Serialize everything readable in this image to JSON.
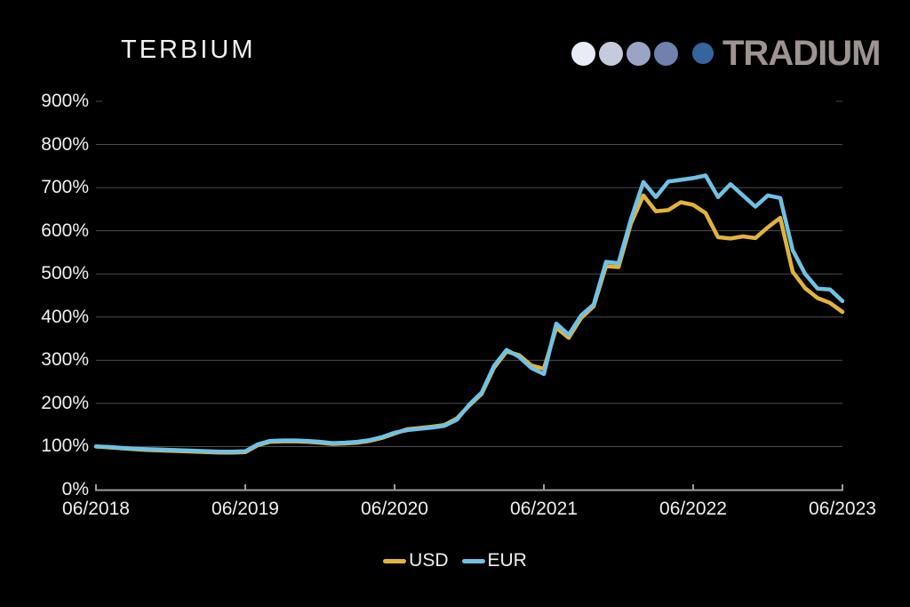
{
  "page": {
    "title": "TERBIUM",
    "brand": {
      "name": "TRADIUM",
      "dot_colors": [
        "#e9ecf4",
        "#c6cadd",
        "#9aa5c6",
        "#6e82ad",
        "#36649d"
      ],
      "text_color": "#9d9492"
    }
  },
  "colors": {
    "background": "#000000",
    "gridline": "#4d4d4d",
    "axis": "#9e9e9e",
    "label_text": "#f0f0f0",
    "usd_line": "#e2b33c",
    "eur_line": "#6fc1e5"
  },
  "chart_data": {
    "type": "line",
    "title": "TERBIUM",
    "xlabel": "",
    "ylabel": "",
    "grid": true,
    "legend_position": "bottom",
    "ylim": [
      0,
      900
    ],
    "gridline_top_value": 800,
    "y_ticks": [
      {
        "value": 0,
        "label": "0%"
      },
      {
        "value": 100,
        "label": "100%"
      },
      {
        "value": 200,
        "label": "200%"
      },
      {
        "value": 300,
        "label": "300%"
      },
      {
        "value": 400,
        "label": "400%"
      },
      {
        "value": 500,
        "label": "500%"
      },
      {
        "value": 600,
        "label": "600%"
      },
      {
        "value": 700,
        "label": "700%"
      },
      {
        "value": 800,
        "label": "800%"
      },
      {
        "value": 900,
        "label": "900%"
      }
    ],
    "x_ticks": [
      {
        "month_index": 0,
        "label": "06/2018"
      },
      {
        "month_index": 12,
        "label": "06/2019"
      },
      {
        "month_index": 24,
        "label": "06/2020"
      },
      {
        "month_index": 36,
        "label": "06/2021"
      },
      {
        "month_index": 48,
        "label": "06/2022"
      },
      {
        "month_index": 60,
        "label": "06/2023"
      }
    ],
    "x_range": {
      "start": "06/2018",
      "end": "06/2023",
      "interval": "monthly",
      "points": 61
    },
    "unit": "percent",
    "series": [
      {
        "name": "USD",
        "color": "#e2b33c",
        "values": [
          100,
          98,
          96,
          94,
          92,
          91,
          90,
          89,
          88,
          87,
          86,
          86,
          87,
          103,
          111,
          112,
          112,
          111,
          109,
          106,
          107,
          109,
          113,
          120,
          130,
          140,
          143,
          146,
          150,
          165,
          195,
          222,
          283,
          320,
          312,
          288,
          280,
          375,
          352,
          398,
          425,
          518,
          516,
          617,
          682,
          645,
          648,
          666,
          660,
          641,
          585,
          582,
          587,
          583,
          608,
          630,
          505,
          467,
          444,
          433,
          412
        ]
      },
      {
        "name": "EUR",
        "color": "#6fc1e5",
        "values": [
          100,
          99,
          97,
          95,
          94,
          93,
          92,
          91,
          90,
          89,
          88,
          88,
          89,
          105,
          113,
          114,
          114,
          113,
          111,
          108,
          109,
          111,
          115,
          122,
          132,
          138,
          141,
          144,
          148,
          162,
          197,
          225,
          287,
          324,
          308,
          282,
          268,
          385,
          359,
          404,
          429,
          528,
          525,
          627,
          713,
          678,
          714,
          718,
          722,
          728,
          678,
          708,
          682,
          656,
          682,
          676,
          555,
          500,
          466,
          464,
          437
        ]
      }
    ]
  }
}
